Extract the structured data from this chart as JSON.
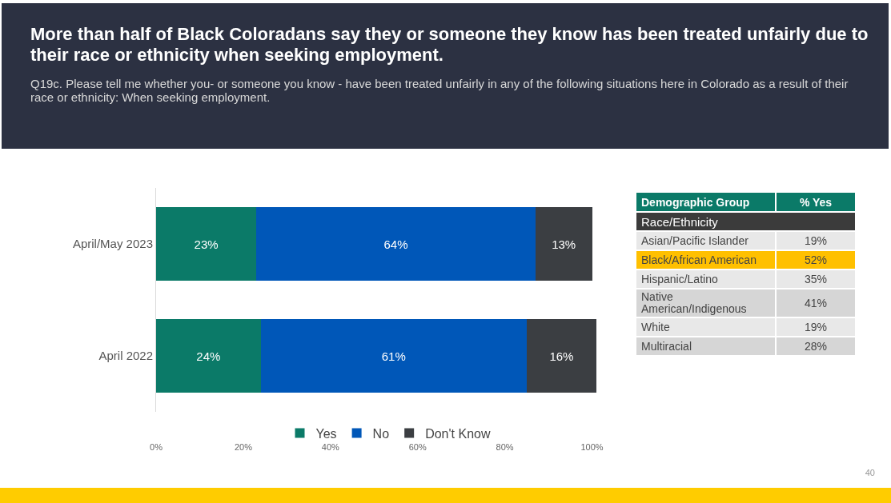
{
  "chart_data": [
    {
      "type": "bar",
      "orientation": "horizontal",
      "stacked": true,
      "title": "More than half of Black Coloradans say they or someone they know has been treated unfairly due to their race or ethnicity when seeking employment.",
      "subtitle": "Q19c. Please tell me whether you- or someone you know - have been treated unfairly in any of the following situations here in Colorado as a result of their race or ethnicity: When seeking employment.",
      "categories": [
        "April/May 2023",
        "April 2022"
      ],
      "series": [
        {
          "name": "Yes",
          "color": "#0b7a68",
          "values": [
            23,
            24
          ],
          "value_labels": [
            "23%",
            "24%"
          ]
        },
        {
          "name": "No",
          "color": "#0057b8",
          "values": [
            64,
            61
          ],
          "value_labels": [
            "64%",
            "61%"
          ]
        },
        {
          "name": "Don't Know",
          "color": "#3b3e42",
          "values": [
            13,
            16
          ],
          "value_labels": [
            "13%",
            "16%"
          ]
        }
      ],
      "xlim": [
        0,
        101
      ],
      "xticks": [
        {
          "value": 0,
          "label": "0%"
        },
        {
          "value": 20,
          "label": "20%"
        },
        {
          "value": 40,
          "label": "40%"
        },
        {
          "value": 60,
          "label": "60%"
        },
        {
          "value": 80,
          "label": "80%"
        },
        {
          "value": 100,
          "label": "100%"
        }
      ],
      "grid": false,
      "legend": "bottom",
      "annotations": [
        "40"
      ]
    },
    {
      "type": "other",
      "annotations": [
        "Demographic Group",
        "% Yes",
        "Race/Ethnicity"
      ],
      "categories": [
        "Asian/Pacific Islander",
        "Black/African American",
        "Hispanic/Latino",
        "Native American/Indigenous",
        "White",
        "Multiracial"
      ],
      "value_labels": [
        "19%",
        "52%",
        "35%",
        "41%",
        "19%",
        "28%"
      ],
      "colors": [
        "#e8e8e8",
        "#ffc000",
        "#e8e8e8",
        "#d6d6d6",
        "#e8e8e8",
        "#d6d6d6"
      ]
    }
  ]
}
